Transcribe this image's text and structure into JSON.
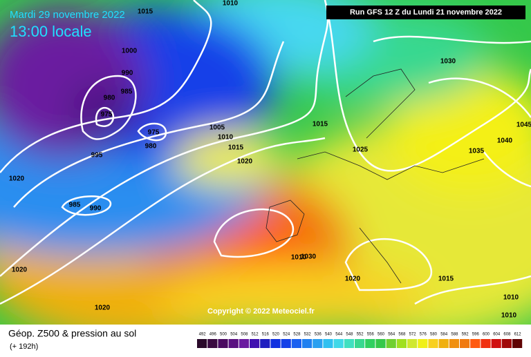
{
  "header": {
    "date": "Mardi 29 novembre 2022",
    "time": "13:00 locale",
    "run": "Run GFS 12 Z du Lundi 21 novembre 2022",
    "copyright": "Copyright © 2022 Meteociel.fr"
  },
  "footer": {
    "title": "Géop. Z500 & pression au sol",
    "lead": "(+ 192h)"
  },
  "colorbar": [
    492,
    496,
    500,
    504,
    508,
    512,
    516,
    520,
    524,
    528,
    532,
    536,
    540,
    544,
    548,
    552,
    556,
    560,
    564,
    568,
    572,
    576,
    580,
    584,
    588,
    592,
    596,
    600,
    604,
    608,
    612
  ],
  "isobar_labels": [
    1015,
    1010,
    1000,
    990,
    985,
    980,
    975,
    975,
    980,
    995,
    1020,
    985,
    990,
    1005,
    1010,
    1015,
    1020,
    1015,
    1025,
    1030,
    1035,
    1040,
    1045,
    1010,
    1030,
    1020,
    1015,
    1020,
    1020,
    1010,
    1010
  ]
}
